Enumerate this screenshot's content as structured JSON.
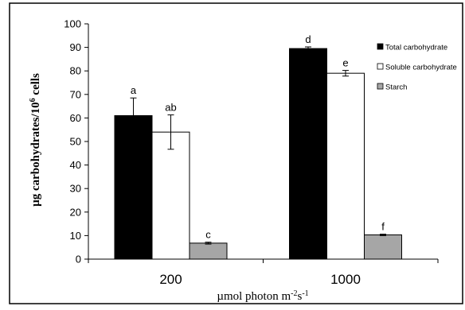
{
  "chart_data": {
    "type": "bar",
    "categories": [
      "200",
      "1000"
    ],
    "series": [
      {
        "name": "Total carbohydrate",
        "values": [
          61,
          89.5
        ],
        "errors": [
          7.5,
          0.7
        ],
        "letters": [
          "a",
          "d"
        ],
        "color": "#000000"
      },
      {
        "name": "Soluble carbohydrate",
        "values": [
          54,
          79
        ],
        "errors": [
          7.3,
          1.2
        ],
        "letters": [
          "ab",
          "e"
        ],
        "color": "#ffffff"
      },
      {
        "name": "Starch",
        "values": [
          6.8,
          10.3
        ],
        "errors": [
          0.4,
          0.3
        ],
        "letters": [
          "c",
          "f"
        ],
        "color": "#a6a6a6"
      }
    ],
    "ylim": [
      0,
      100
    ],
    "yticks": [
      "0",
      "10",
      "20",
      "30",
      "40",
      "50",
      "60",
      "70",
      "80",
      "90",
      "100"
    ],
    "ylabel": {
      "base": "µg carbohydrates/10",
      "sup": "6",
      "tail": " cells"
    },
    "xlabel": {
      "p1": "µmol photon m",
      "s1": "-2",
      "p2": "s",
      "s2": "-1"
    },
    "grid": false,
    "legend_position": "top-right"
  }
}
